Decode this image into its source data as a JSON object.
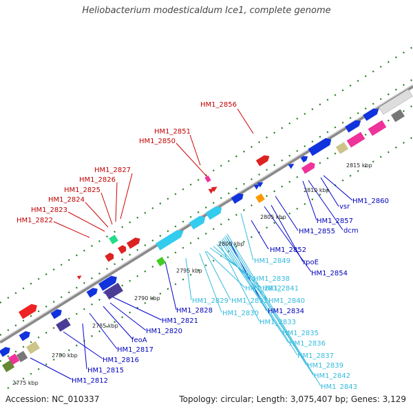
{
  "title": "Heliobacterium modesticaldum Ice1, complete genome",
  "footer": {
    "accession": "Accession: NC_010337",
    "topology": "Topology: circular; Length: 3,075,407 bp; Genes: 3,129"
  },
  "colors": {
    "backbone": "#8a8a8a",
    "red_labels": "#c00000",
    "blue_labels": "#0000bb",
    "cyan_labels": "#33bbdd",
    "ticks": "#1e7a1e"
  },
  "scale_ticks": [
    "2775 kbp",
    "2780 kbp",
    "2785 kbp",
    "2790 kbp",
    "2795 kbp",
    "2800 kbp",
    "2805 kbp",
    "2810 kbp",
    "2815 kbp"
  ],
  "labels": {
    "red": [
      "HM1_2856",
      "HM1_2851",
      "HM1_2850",
      "HM1_2827",
      "HM1_2826",
      "HM1_2825",
      "HM1_2824",
      "HM1_2823",
      "HM1_2822"
    ],
    "blue": [
      "HM1_2860",
      "vsr",
      "HM1_2857",
      "dcm",
      "HM1_2855",
      "HM1_2852",
      "rpoE",
      "HM1_2854",
      "HM1_2834",
      "HM1_2828",
      "HM1_2821",
      "HM1_2820",
      "feoA",
      "HM1_2817",
      "HM1_2816",
      "HM1_2815",
      "HM1_2812"
    ],
    "cyan": [
      "HM1_2849",
      "HM1_2838",
      "HM1_2832",
      "HM1_2841",
      "HM1_2829",
      "HM1_2831",
      "HM1_2840",
      "HM1_2830",
      "HM1_2833",
      "HM1_2835",
      "HM1_2836",
      "HM1_2837",
      "HM1_2839",
      "HM1_2842",
      "HM1_2843"
    ]
  }
}
